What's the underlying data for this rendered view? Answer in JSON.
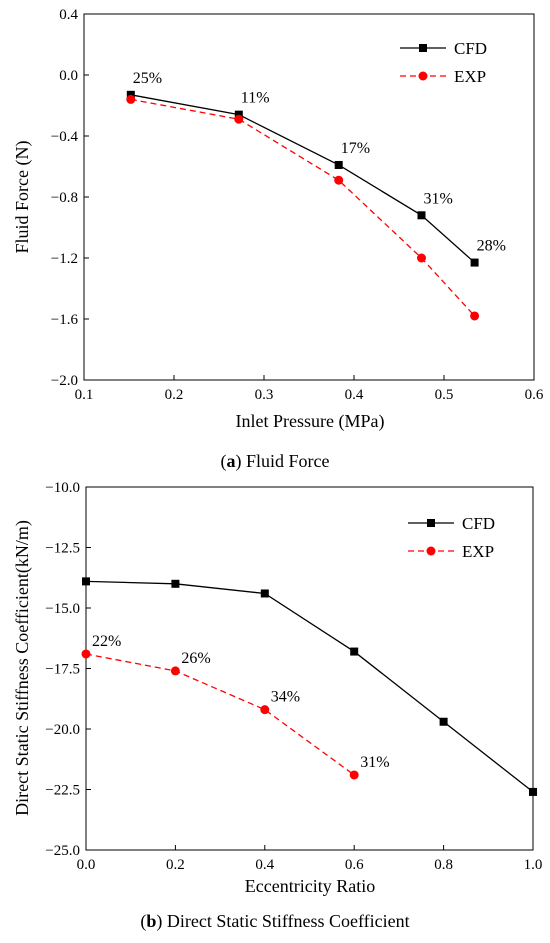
{
  "chart_data": [
    {
      "type": "line",
      "panel": "a",
      "xlabel": "Inlet Pressure (MPa)",
      "ylabel": "Fluid Force (N)",
      "xlim": [
        0.1,
        0.6
      ],
      "ylim": [
        -2.0,
        0.4
      ],
      "xticks": [
        "0.1",
        "0.2",
        "0.3",
        "0.4",
        "0.5",
        "0.6"
      ],
      "yticks": [
        "0.4",
        "0.0",
        "−0.4",
        "−0.8",
        "−1.2",
        "−1.6",
        "−2.0"
      ],
      "xtick_values": [
        0.1,
        0.2,
        0.3,
        0.4,
        0.5,
        0.6
      ],
      "ytick_values": [
        0.4,
        0.0,
        -0.4,
        -0.8,
        -1.2,
        -1.6,
        -2.0
      ],
      "grid": false,
      "legend_position": "top-right",
      "series": [
        {
          "name": "CFD",
          "color": "#000000",
          "line": "solid",
          "marker": "square",
          "x": [
            0.152,
            0.272,
            0.383,
            0.475,
            0.534
          ],
          "y": [
            -0.13,
            -0.26,
            -0.59,
            -0.92,
            -1.23
          ]
        },
        {
          "name": "EXP",
          "color": "#ff0000",
          "line": "dashed",
          "marker": "circle",
          "x": [
            0.152,
            0.272,
            0.383,
            0.475,
            0.534
          ],
          "y": [
            -0.16,
            -0.29,
            -0.69,
            -1.2,
            -1.58
          ]
        }
      ],
      "annotations": [
        {
          "text": "25%",
          "x": 0.152,
          "y": -0.13
        },
        {
          "text": "11%",
          "x": 0.272,
          "y": -0.26
        },
        {
          "text": "17%",
          "x": 0.383,
          "y": -0.59
        },
        {
          "text": "31%",
          "x": 0.475,
          "y": -0.92
        },
        {
          "text": "28%",
          "x": 0.534,
          "y": -1.23
        }
      ],
      "caption_letter": "a",
      "caption_text": " Fluid Force"
    },
    {
      "type": "line",
      "panel": "b",
      "xlabel": "Eccentricity Ratio",
      "ylabel": "Direct Static Stiffness Coefficient(kN/m)",
      "xlim": [
        0.0,
        1.0
      ],
      "ylim": [
        -25.0,
        -10.0
      ],
      "xticks": [
        "0.0",
        "0.2",
        "0.4",
        "0.6",
        "0.8",
        "1.0"
      ],
      "yticks": [
        "−10.0",
        "−12.5",
        "−15.0",
        "−17.5",
        "−20.0",
        "−22.5",
        "−25.0"
      ],
      "xtick_values": [
        0.0,
        0.2,
        0.4,
        0.6,
        0.8,
        1.0
      ],
      "ytick_values": [
        -10.0,
        -12.5,
        -15.0,
        -17.5,
        -20.0,
        -22.5,
        -25.0
      ],
      "grid": false,
      "legend_position": "top-right",
      "series": [
        {
          "name": "CFD",
          "color": "#000000",
          "line": "solid",
          "marker": "square",
          "x": [
            0.0,
            0.2,
            0.4,
            0.6,
            0.8,
            1.0
          ],
          "y": [
            -13.9,
            -14.0,
            -14.4,
            -16.8,
            -19.7,
            -22.6
          ]
        },
        {
          "name": "EXP",
          "color": "#ff0000",
          "line": "dashed",
          "marker": "circle",
          "x": [
            0.0,
            0.2,
            0.4,
            0.6
          ],
          "y": [
            -16.9,
            -17.6,
            -19.2,
            -21.9
          ]
        }
      ],
      "annotations": [
        {
          "text": "22%",
          "x": 0.0,
          "y": -16.9
        },
        {
          "text": "26%",
          "x": 0.2,
          "y": -17.6
        },
        {
          "text": "34%",
          "x": 0.4,
          "y": -19.2
        },
        {
          "text": "31%",
          "x": 0.6,
          "y": -21.9
        }
      ],
      "caption_letter": "b",
      "caption_text": " Direct Static Stiffness Coefficient"
    }
  ]
}
